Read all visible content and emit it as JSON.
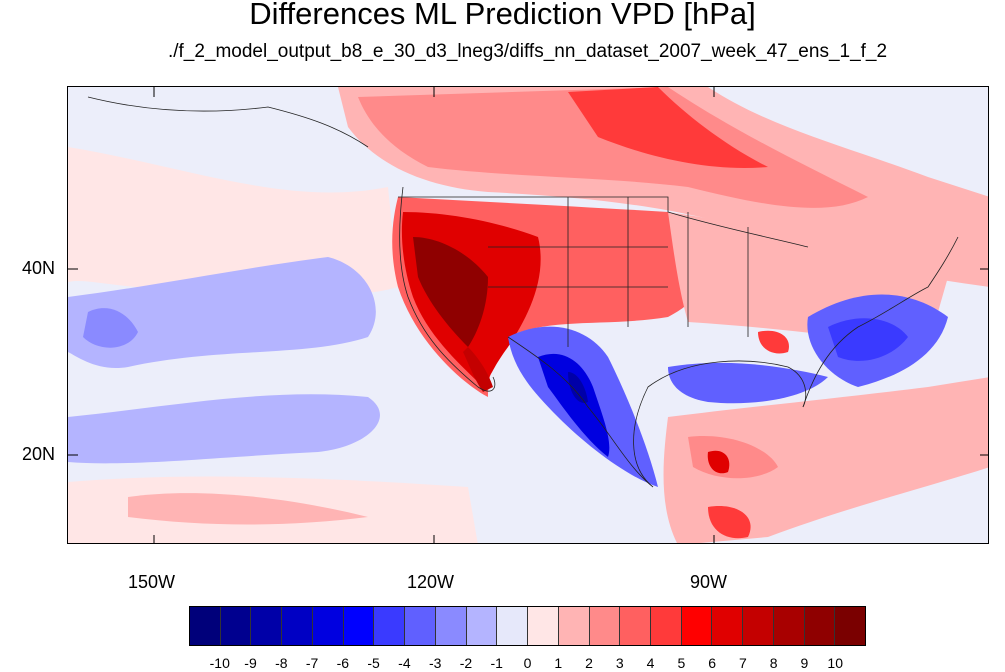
{
  "title": "Differences ML Prediction VPD [hPa]",
  "subtitle": "./f_2_model_output_b8_e_30_d3_lneg3/diffs_nn_dataset_2007_week_47_ens_1_f_2",
  "map": {
    "lat_labels": [
      "40N",
      "20N"
    ],
    "lon_labels": [
      "150W",
      "120W",
      "90W"
    ]
  },
  "colorbar": {
    "colors": [
      "#00007a",
      "#00008f",
      "#0000a8",
      "#0000c4",
      "#0000e0",
      "#0000ff",
      "#3a3aff",
      "#6060ff",
      "#8a8aff",
      "#b4b4ff",
      "#e6e8fa",
      "#ffe6e6",
      "#ffb4b4",
      "#ff8a8a",
      "#ff6060",
      "#ff3a3a",
      "#ff0000",
      "#e00000",
      "#c40000",
      "#a80000",
      "#8f0000",
      "#7a0000"
    ],
    "labels": [
      "-10",
      "-9",
      "-8",
      "-7",
      "-6",
      "-5",
      "-4",
      "-3",
      "-2",
      "-1",
      "0",
      "1",
      "2",
      "3",
      "4",
      "5",
      "6",
      "7",
      "8",
      "9",
      "10"
    ]
  }
}
